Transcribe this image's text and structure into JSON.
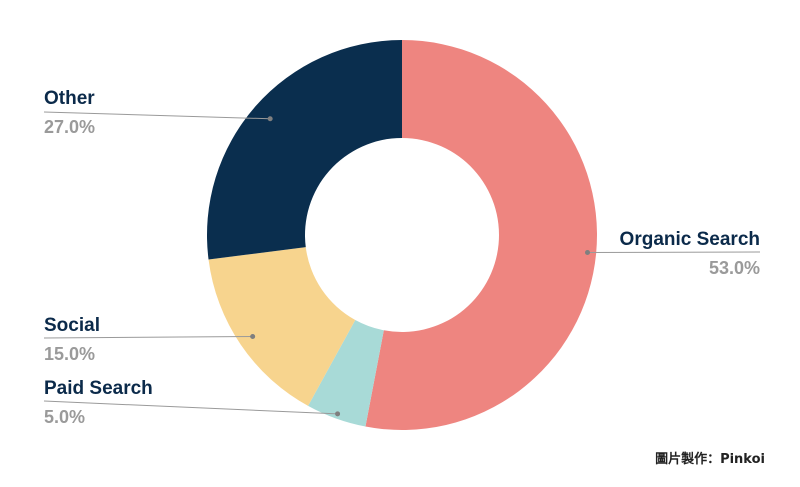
{
  "chart_data": {
    "type": "pie",
    "donut": true,
    "categories": [
      "Organic Search",
      "Paid Search",
      "Social",
      "Other"
    ],
    "values": [
      53.0,
      5.0,
      15.0,
      27.0
    ],
    "value_labels": [
      "53.0%",
      "5.0%",
      "15.0%",
      "27.0%"
    ],
    "colors": [
      "#ee8580",
      "#a8dad7",
      "#f7d48e",
      "#0a2e4e"
    ],
    "start_angle_deg": 0,
    "direction": "clockwise",
    "legend": "none"
  },
  "credit": "圖片製作：Pinkoi"
}
